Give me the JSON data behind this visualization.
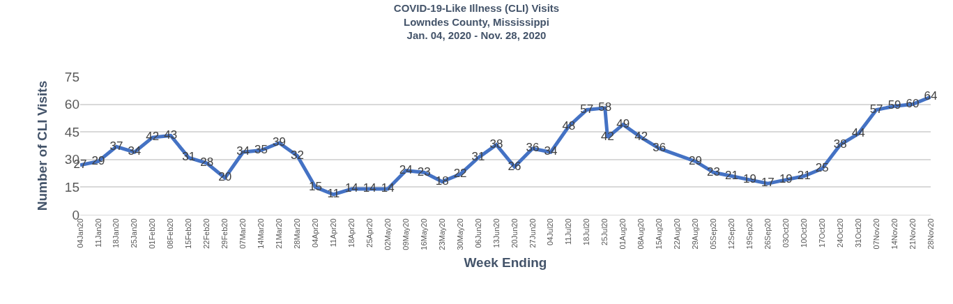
{
  "chart_data": {
    "type": "line",
    "title": "COVID-19-Like Illness (CLI) Visits\nLowndes County, Mississippi\nJan. 04, 2020 - Nov. 28, 2020",
    "xlabel": "Week Ending",
    "ylabel": "Number of CLI Visits",
    "x": [
      "2020-01-04",
      "2020-01-11",
      "2020-01-18",
      "2020-01-25",
      "2020-02-01",
      "2020-02-08",
      "2020-02-15",
      "2020-02-22",
      "2020-02-29",
      "2020-03-07",
      "2020-03-14",
      "2020-03-21",
      "2020-03-28",
      "2020-04-04",
      "2020-04-11",
      "2020-04-18",
      "2020-04-25",
      "2020-05-02",
      "2020-05-09",
      "2020-05-16",
      "2020-05-23",
      "2020-05-30",
      "2020-06-06",
      "2020-06-13",
      "2020-06-20",
      "2020-06-27",
      "2020-07-04",
      "2020-07-11",
      "2020-07-18",
      "2020-07-25",
      "2020-07-26",
      "2020-08-01",
      "2020-08-08",
      "2020-08-15",
      "2020-08-29",
      "2020-09-05",
      "2020-09-12",
      "2020-09-19",
      "2020-09-26",
      "2020-10-03",
      "2020-10-10",
      "2020-10-17",
      "2020-10-24",
      "2020-10-31",
      "2020-11-07",
      "2020-11-14",
      "2020-11-21",
      "2020-11-28"
    ],
    "series": [
      {
        "color": "#4472c4",
        "values": [
          27,
          29,
          37,
          34,
          42,
          43,
          31,
          28,
          20,
          34,
          35,
          39,
          32,
          15,
          11,
          14,
          14,
          14,
          24,
          23,
          18,
          22,
          31,
          38,
          26,
          36,
          34,
          48,
          57,
          58,
          42,
          49,
          42,
          36,
          29,
          23,
          21,
          19,
          17,
          19,
          21,
          25,
          38,
          44,
          57,
          59,
          60,
          64
        ]
      }
    ],
    "xlim": [
      "2020-01-04",
      "2020-11-28"
    ],
    "xticks": [
      {
        "value": "2020-01-04",
        "label": "04Jan20"
      },
      {
        "value": "2020-01-11",
        "label": "11Jan20"
      },
      {
        "value": "2020-01-18",
        "label": "18Jan20"
      },
      {
        "value": "2020-01-25",
        "label": "25Jan20"
      },
      {
        "value": "2020-02-01",
        "label": "01Feb20"
      },
      {
        "value": "2020-02-08",
        "label": "08Feb20"
      },
      {
        "value": "2020-02-15",
        "label": "15Feb20"
      },
      {
        "value": "2020-02-22",
        "label": "22Feb20"
      },
      {
        "value": "2020-02-29",
        "label": "29Feb20"
      },
      {
        "value": "2020-03-07",
        "label": "07Mar20"
      },
      {
        "value": "2020-03-14",
        "label": "14Mar20"
      },
      {
        "value": "2020-03-21",
        "label": "21Mar20"
      },
      {
        "value": "2020-03-28",
        "label": "28Mar20"
      },
      {
        "value": "2020-04-04",
        "label": "04Apr20"
      },
      {
        "value": "2020-04-11",
        "label": "11Apr20"
      },
      {
        "value": "2020-04-18",
        "label": "18Apr20"
      },
      {
        "value": "2020-04-25",
        "label": "25Apr20"
      },
      {
        "value": "2020-05-02",
        "label": "02May20"
      },
      {
        "value": "2020-05-09",
        "label": "09May20"
      },
      {
        "value": "2020-05-16",
        "label": "16May20"
      },
      {
        "value": "2020-05-23",
        "label": "23May20"
      },
      {
        "value": "2020-05-30",
        "label": "30May20"
      },
      {
        "value": "2020-06-06",
        "label": "06Jun20"
      },
      {
        "value": "2020-06-13",
        "label": "13Jun20"
      },
      {
        "value": "2020-06-20",
        "label": "20Jun20"
      },
      {
        "value": "2020-06-27",
        "label": "27Jun20"
      },
      {
        "value": "2020-07-04",
        "label": "04Jul20"
      },
      {
        "value": "2020-07-11",
        "label": "11Jul20"
      },
      {
        "value": "2020-07-18",
        "label": "18Jul20"
      },
      {
        "value": "2020-07-25",
        "label": "25Jul20"
      },
      {
        "value": "2020-08-01",
        "label": "01Aug20"
      },
      {
        "value": "2020-08-08",
        "label": "08Aug20"
      },
      {
        "value": "2020-08-15",
        "label": "15Aug20"
      },
      {
        "value": "2020-08-22",
        "label": "22Aug20"
      },
      {
        "value": "2020-08-29",
        "label": "29Aug20"
      },
      {
        "value": "2020-09-05",
        "label": "05Sep20"
      },
      {
        "value": "2020-09-12",
        "label": "12Sep20"
      },
      {
        "value": "2020-09-19",
        "label": "19Sep20"
      },
      {
        "value": "2020-09-26",
        "label": "26Sep20"
      },
      {
        "value": "2020-10-03",
        "label": "03Oct20"
      },
      {
        "value": "2020-10-10",
        "label": "10Oct20"
      },
      {
        "value": "2020-10-17",
        "label": "17Oct20"
      },
      {
        "value": "2020-10-24",
        "label": "24Oct20"
      },
      {
        "value": "2020-10-31",
        "label": "31Oct20"
      },
      {
        "value": "2020-11-07",
        "label": "07Nov20"
      },
      {
        "value": "2020-11-14",
        "label": "14Nov20"
      },
      {
        "value": "2020-11-21",
        "label": "21Nov20"
      },
      {
        "value": "2020-11-28",
        "label": "28Nov20"
      }
    ],
    "ylim": [
      0,
      75
    ],
    "yticks": [
      0,
      15,
      30,
      45,
      60,
      75
    ],
    "grid": "y",
    "data_labels": true,
    "marker": "none",
    "line_style": "solid"
  }
}
